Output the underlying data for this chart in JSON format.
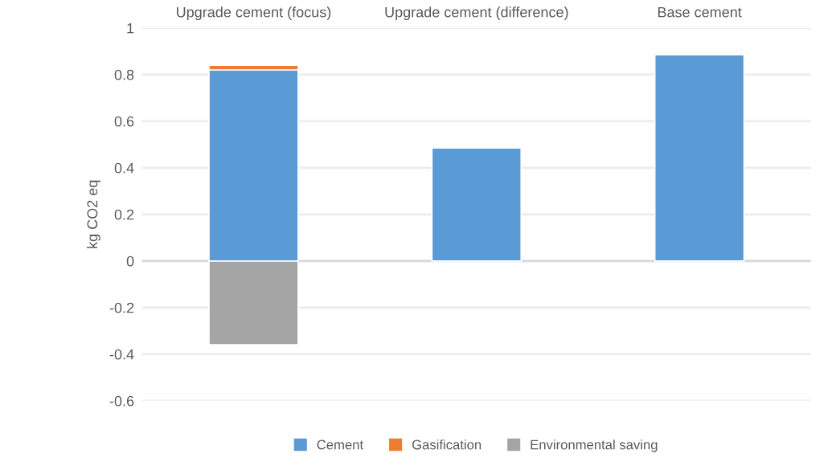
{
  "chart_data": {
    "type": "bar",
    "stacked": true,
    "ylabel": "kg CO2 eq",
    "categories": [
      "Upgrade cement (focus)",
      "Upgrade cement (difference)",
      "Base cement"
    ],
    "series": [
      {
        "name": "Cement",
        "color": "#5b9bd5",
        "values": [
          0.82,
          0.485,
          0.885
        ]
      },
      {
        "name": "Gasification",
        "color": "#ed7d31",
        "values": [
          0.02,
          null,
          null
        ]
      },
      {
        "name": "Environmental saving",
        "color": "#a5a5a5",
        "values": [
          -0.36,
          null,
          null
        ]
      }
    ],
    "ylim": [
      -0.6,
      1
    ],
    "yticks": [
      -0.6,
      -0.4,
      -0.2,
      0,
      0.2,
      0.4,
      0.6,
      0.8,
      1
    ],
    "grid": "y",
    "legend": "bottom"
  }
}
